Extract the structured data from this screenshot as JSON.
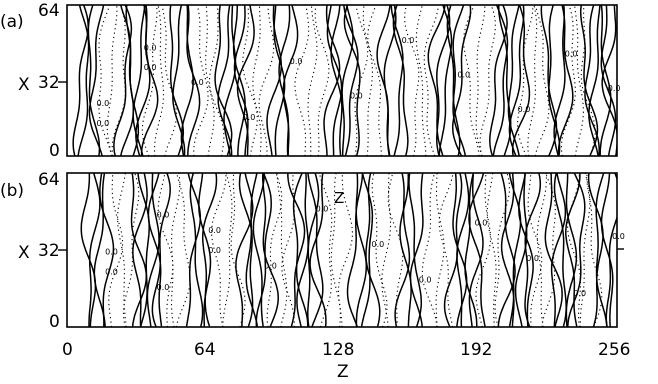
{
  "chart_data": [
    {
      "type": "contour",
      "panel_label": "(a)",
      "xlabel": "Z",
      "ylabel": "X",
      "xlim": [
        0,
        256
      ],
      "ylim": [
        0,
        64
      ],
      "y_ticks": [
        "0",
        "32",
        "64"
      ],
      "x_ticks": [],
      "contour_level_labels": [
        "0.0",
        "0.0",
        "0.0",
        "0.0",
        "0.0",
        "0.0",
        "0.0",
        "0.0",
        "0.0",
        "0.0",
        "0.0",
        "0.0",
        "0.0"
      ],
      "ridges": [
        {
          "z": 10,
          "strength": 2
        },
        {
          "z": 32,
          "strength": 3
        },
        {
          "z": 54,
          "strength": 2
        },
        {
          "z": 78,
          "strength": 3
        },
        {
          "z": 100,
          "strength": 2
        },
        {
          "z": 128,
          "strength": 3
        },
        {
          "z": 152,
          "strength": 2
        },
        {
          "z": 178,
          "strength": 3
        },
        {
          "z": 206,
          "strength": 3
        },
        {
          "z": 228,
          "strength": 2
        },
        {
          "z": 248,
          "strength": 3
        }
      ]
    },
    {
      "type": "contour",
      "panel_label": "(b)",
      "xlabel": "Z",
      "ylabel": "X",
      "xlim": [
        0,
        256
      ],
      "ylim": [
        0,
        64
      ],
      "y_ticks": [
        "0",
        "32",
        "64"
      ],
      "x_ticks": [
        "0",
        "64",
        "128",
        "192",
        "256"
      ],
      "inline_label": "Z",
      "contour_level_labels": [
        "0.0",
        "0.0",
        "0.0",
        "0.0",
        "0.0",
        "0.0",
        "0.0",
        "0.0",
        "0.0",
        "0.0",
        "0.0",
        "0.0",
        "0.0",
        "0.0"
      ],
      "ridges": [
        {
          "z": 14,
          "strength": 2
        },
        {
          "z": 38,
          "strength": 3
        },
        {
          "z": 62,
          "strength": 2
        },
        {
          "z": 88,
          "strength": 3
        },
        {
          "z": 112,
          "strength": 3
        },
        {
          "z": 138,
          "strength": 2
        },
        {
          "z": 160,
          "strength": 2
        },
        {
          "z": 186,
          "strength": 3
        },
        {
          "z": 210,
          "strength": 3
        },
        {
          "z": 232,
          "strength": 3
        },
        {
          "z": 250,
          "strength": 2
        }
      ]
    }
  ]
}
